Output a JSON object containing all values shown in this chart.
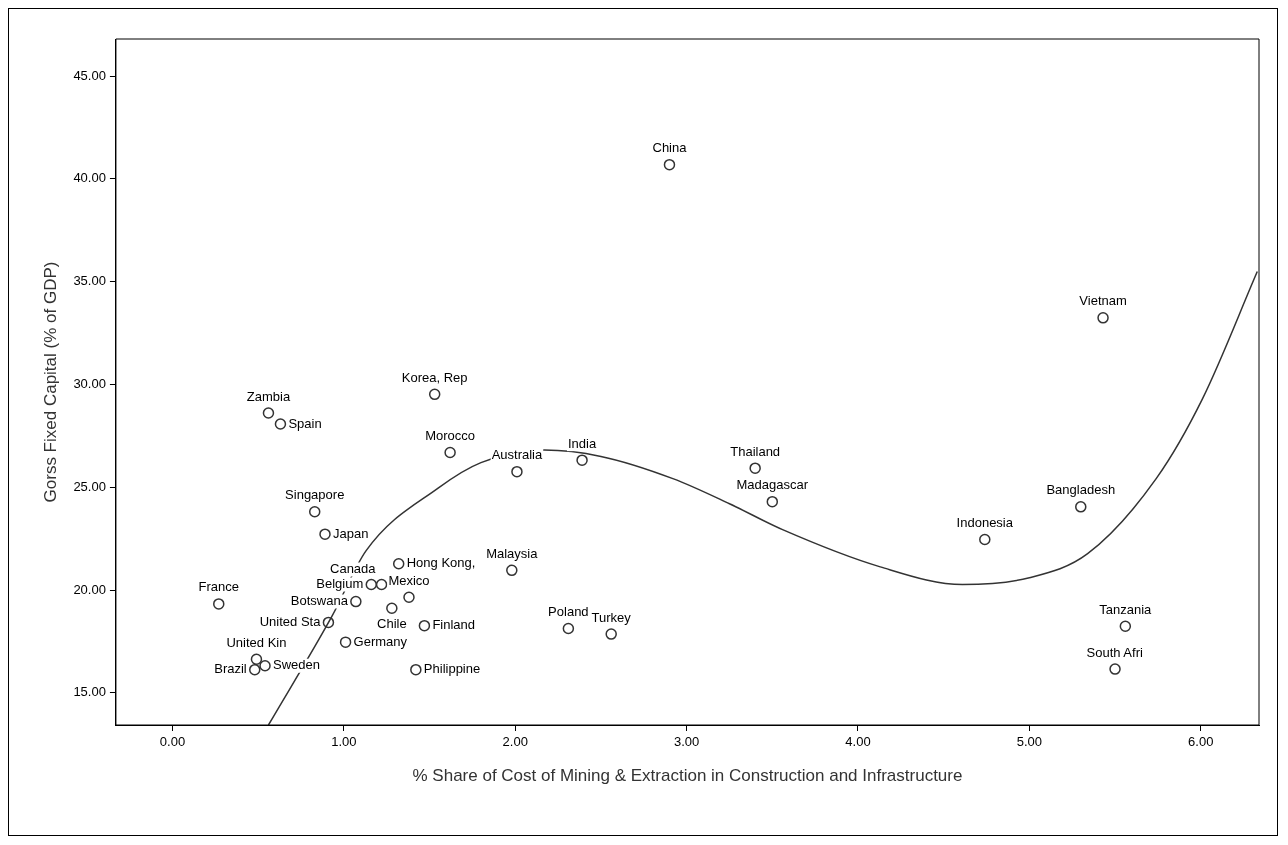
{
  "chart_data": {
    "type": "scatter",
    "xlabel": "% Share of Cost of Mining & Extraction in Construction and Infrastructure",
    "ylabel": "Gorss Fixed Capital (% of GDP)",
    "xlim": [
      -0.33,
      6.34
    ],
    "xticks": [
      {
        "value": 0,
        "label": "0.00"
      },
      {
        "value": 1,
        "label": "1.00"
      },
      {
        "value": 2,
        "label": "2.00"
      },
      {
        "value": 3,
        "label": "3.00"
      },
      {
        "value": 4,
        "label": "4.00"
      },
      {
        "value": 5,
        "label": "5.00"
      },
      {
        "value": 6,
        "label": "6.00"
      }
    ],
    "ylim": [
      13.44,
      46.8
    ],
    "yticks": [
      {
        "value": 15,
        "label": "15.00"
      },
      {
        "value": 20,
        "label": "20.00"
      },
      {
        "value": 25,
        "label": "25.00"
      },
      {
        "value": 30,
        "label": "30.00"
      },
      {
        "value": 35,
        "label": "35.00"
      },
      {
        "value": 40,
        "label": "40.00"
      },
      {
        "value": 45,
        "label": "45.00"
      }
    ],
    "grid": false,
    "legend": false,
    "marker": "circle",
    "series": [
      {
        "type": "scatter",
        "color": "#333333",
        "x": [
          2.9,
          5.43,
          2.39,
          3.4,
          3.5,
          4.74,
          5.3,
          5.56,
          5.5,
          2.31,
          2.56,
          0.56,
          0.63,
          1.53,
          1.62,
          2.01,
          0.83,
          0.89,
          1.07,
          1.16,
          1.22,
          1.38,
          1.28,
          0.91,
          1.01,
          1.47,
          1.42,
          1.32,
          1.98,
          0.27,
          0.49,
          0.48,
          0.54
        ],
        "values": [
          40.69,
          33.24,
          26.32,
          25.93,
          24.3,
          22.46,
          24.05,
          18.24,
          16.16,
          18.13,
          17.86,
          28.61,
          28.08,
          29.52,
          26.69,
          25.76,
          23.81,
          22.72,
          19.44,
          20.27,
          20.27,
          19.65,
          19.12,
          18.43,
          17.47,
          18.27,
          16.13,
          21.28,
          20.96,
          19.33,
          16.64,
          16.13,
          16.32
        ]
      },
      {
        "type": "line",
        "color": "#333333",
        "marker": "none",
        "x": [
          0.56,
          0.93,
          1.13,
          1.55,
          1.8,
          2.17,
          2.5,
          2.92,
          3.25,
          3.56,
          4.13,
          4.61,
          5.0,
          5.34,
          5.74,
          6.01,
          6.33
        ],
        "values": [
          13.44,
          18.72,
          21.92,
          24.96,
          26.2,
          26.81,
          26.5,
          25.42,
          24.2,
          22.94,
          21.13,
          20.27,
          20.6,
          21.77,
          25.42,
          29.3,
          35.49
        ]
      }
    ],
    "annotations": [
      {
        "text": "China",
        "x": 2.9,
        "y": 40.69
      },
      {
        "text": "Vietnam",
        "x": 5.43,
        "y": 33.24
      },
      {
        "text": "India",
        "x": 2.39,
        "y": 26.32
      },
      {
        "text": "Thailand",
        "x": 3.4,
        "y": 25.93
      },
      {
        "text": "Madagascar",
        "x": 3.5,
        "y": 24.3
      },
      {
        "text": "Indonesia",
        "x": 4.74,
        "y": 22.46
      },
      {
        "text": "Bangladesh",
        "x": 5.3,
        "y": 24.05
      },
      {
        "text": "Tanzania",
        "x": 5.56,
        "y": 18.24
      },
      {
        "text": "South Afri",
        "x": 5.5,
        "y": 16.16
      },
      {
        "text": "Poland",
        "x": 2.31,
        "y": 18.13
      },
      {
        "text": "Turkey",
        "x": 2.56,
        "y": 17.86
      },
      {
        "text": "Zambia",
        "x": 0.56,
        "y": 28.61
      },
      {
        "text": "Spain",
        "x": 0.63,
        "y": 28.08
      },
      {
        "text": "Korea, Rep",
        "x": 1.53,
        "y": 29.52
      },
      {
        "text": "Morocco",
        "x": 1.62,
        "y": 26.69
      },
      {
        "text": "Australia",
        "x": 2.01,
        "y": 25.76
      },
      {
        "text": "Singapore",
        "x": 0.83,
        "y": 23.81
      },
      {
        "text": "Japan",
        "x": 0.89,
        "y": 22.72
      },
      {
        "text": "Botswana",
        "x": 1.07,
        "y": 19.44
      },
      {
        "text": "Belgium",
        "x": 1.16,
        "y": 20.27
      },
      {
        "text": "Canada",
        "x": 1.22,
        "y": 20.27
      },
      {
        "text": "Mexico",
        "x": 1.38,
        "y": 19.65
      },
      {
        "text": "Chile",
        "x": 1.28,
        "y": 19.12
      },
      {
        "text": "United Sta",
        "x": 0.91,
        "y": 18.43
      },
      {
        "text": "Germany",
        "x": 1.01,
        "y": 17.47
      },
      {
        "text": "Finland",
        "x": 1.47,
        "y": 18.27
      },
      {
        "text": "Philippine",
        "x": 1.42,
        "y": 16.13
      },
      {
        "text": "Hong Kong,",
        "x": 1.32,
        "y": 21.28
      },
      {
        "text": "Malaysia",
        "x": 1.98,
        "y": 20.96
      },
      {
        "text": "France",
        "x": 0.27,
        "y": 19.33
      },
      {
        "text": "United Kin",
        "x": 0.49,
        "y": 16.64
      },
      {
        "text": "Brazil",
        "x": 0.48,
        "y": 16.13
      },
      {
        "text": "Sweden",
        "x": 0.54,
        "y": 16.32
      }
    ]
  }
}
